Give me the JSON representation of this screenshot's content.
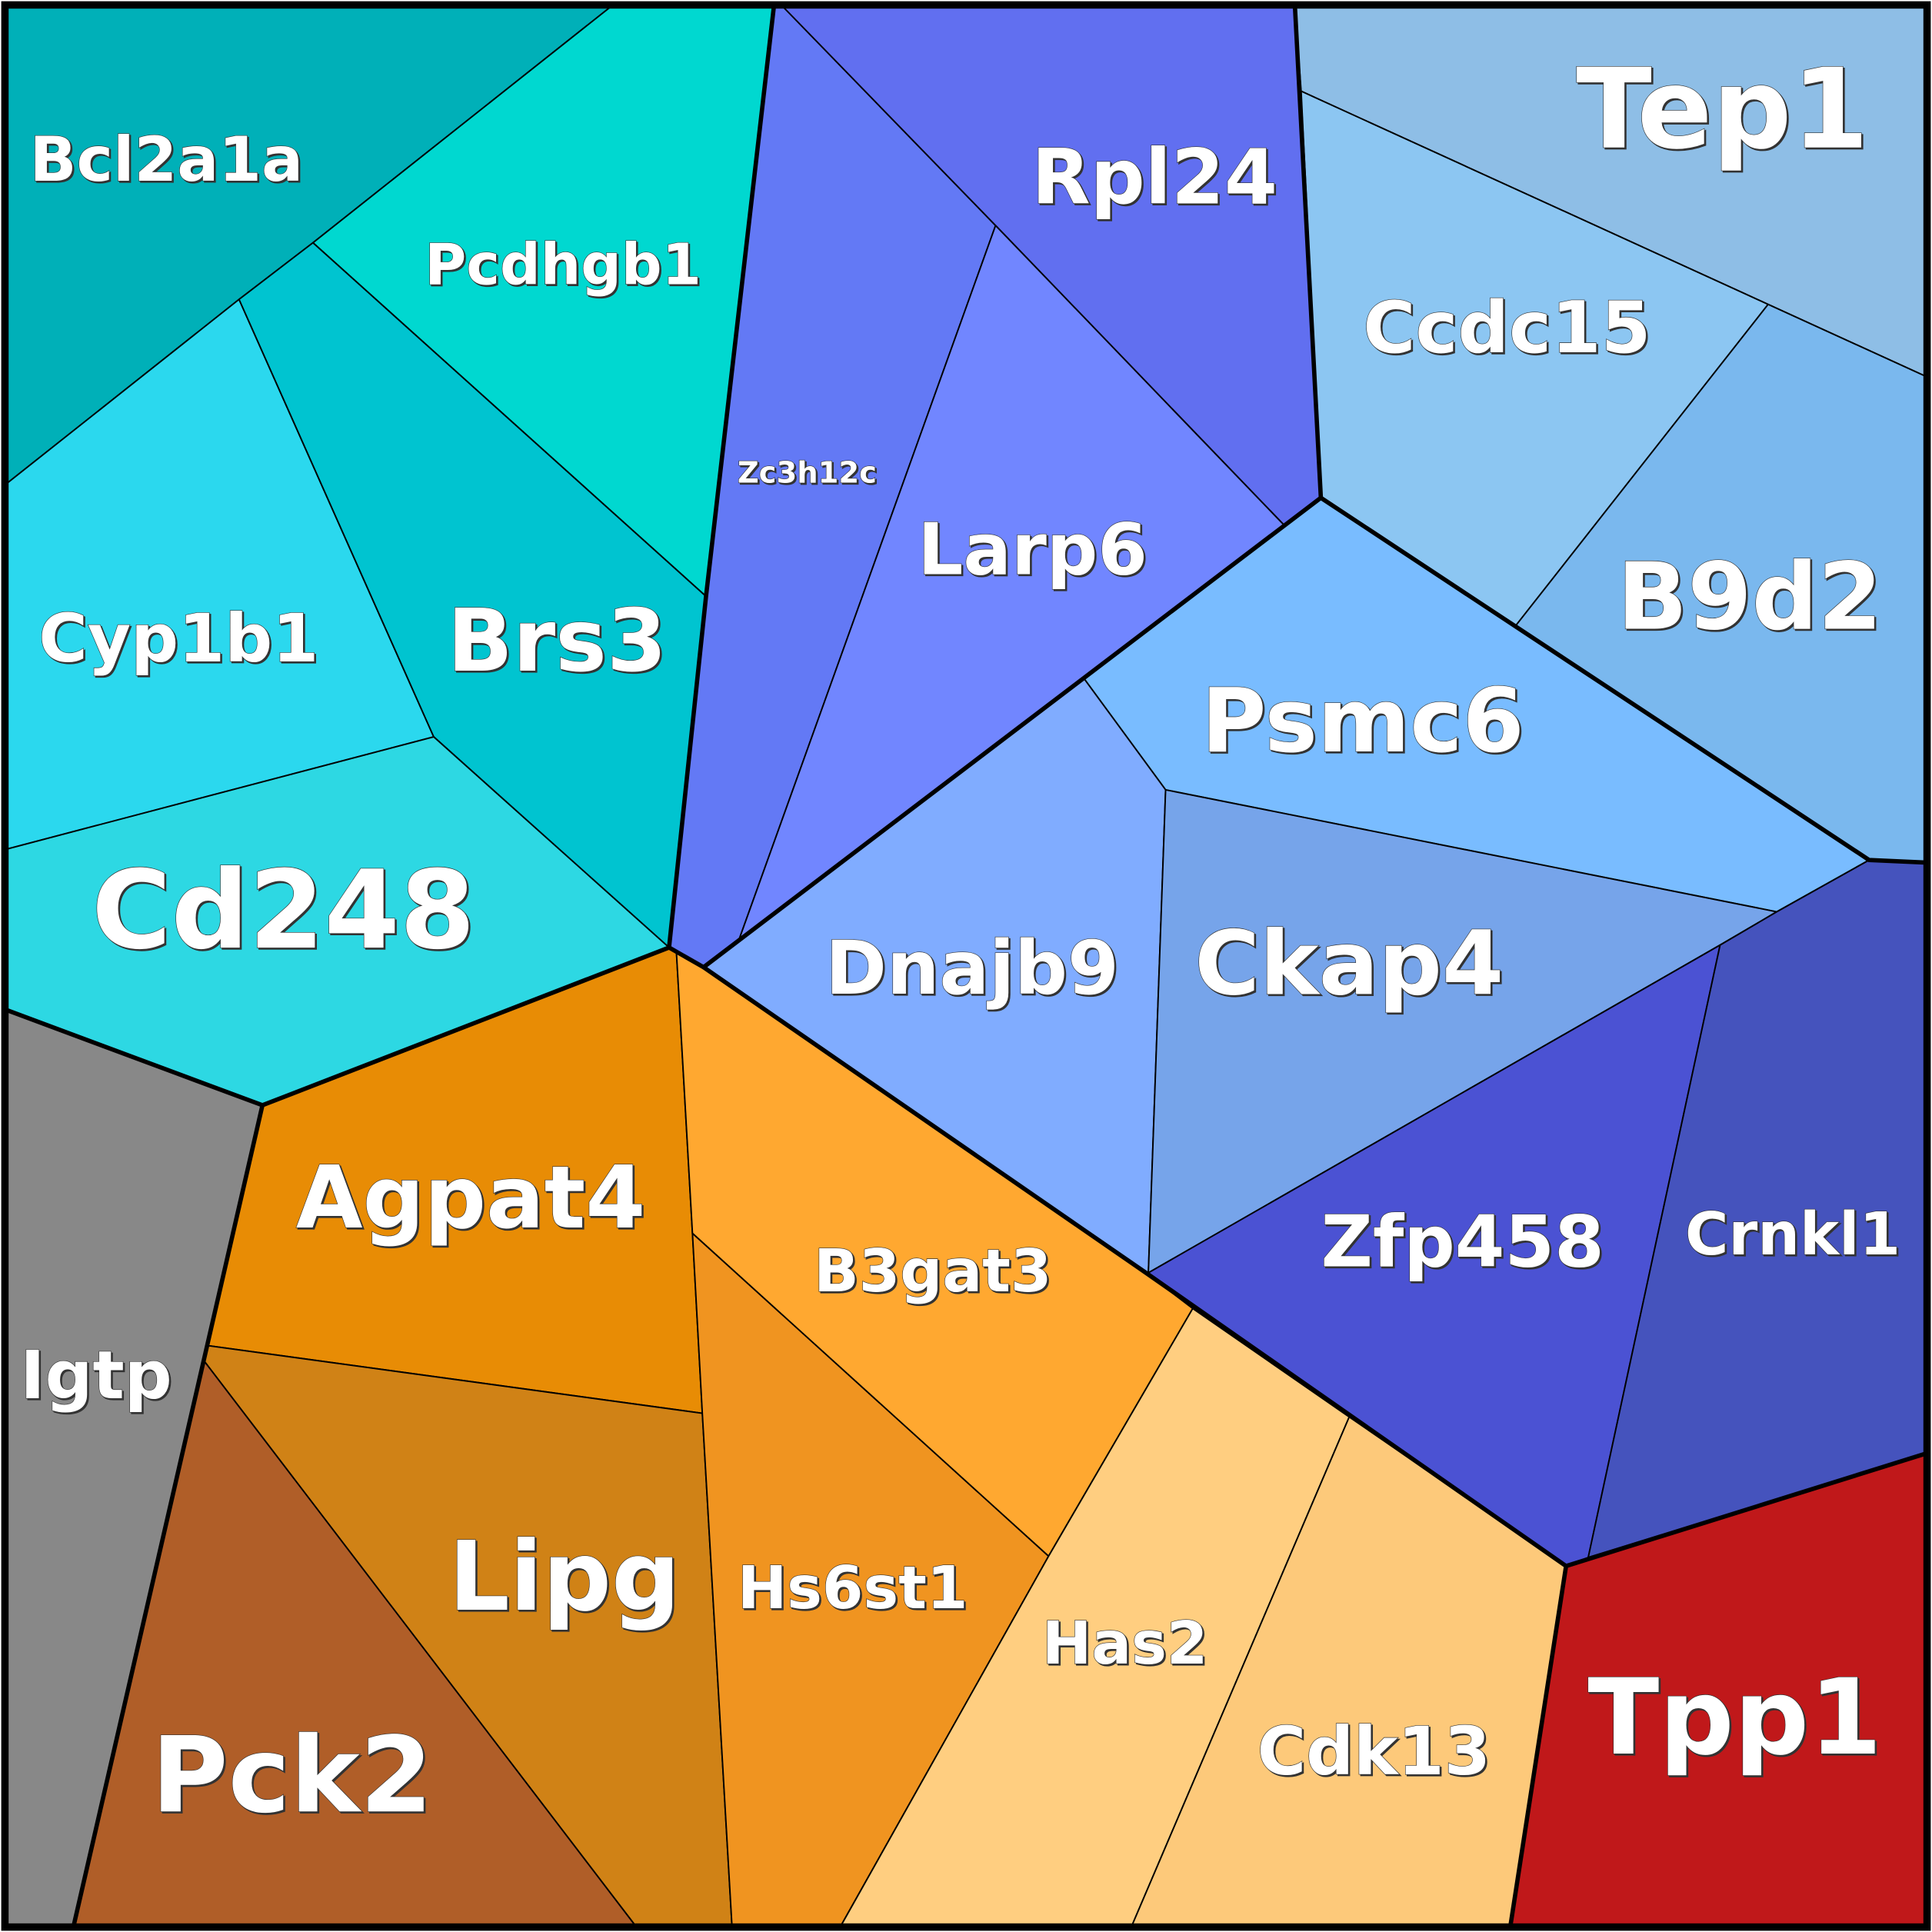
{
  "cells": [
    {
      "label": "Bcl2a1a"
    },
    {
      "label": "Pcdhgb1"
    },
    {
      "label": "Cyp1b1"
    },
    {
      "label": "Brs3"
    },
    {
      "label": "Cd248"
    },
    {
      "label": "Igtp"
    },
    {
      "label": "Agpat4"
    },
    {
      "label": "Lipg"
    },
    {
      "label": "Pck2"
    },
    {
      "label": "B3gat3"
    },
    {
      "label": "Hs6st1"
    },
    {
      "label": "Has2"
    },
    {
      "label": "Cdk13"
    },
    {
      "label": "Tpp1"
    },
    {
      "label": "Zc3h12c"
    },
    {
      "label": "Rpl24"
    },
    {
      "label": "Larp6"
    },
    {
      "label": "Tep1"
    },
    {
      "label": "Ccdc15"
    },
    {
      "label": "B9d2"
    },
    {
      "label": "Psmc6"
    },
    {
      "label": "Dnajb9"
    },
    {
      "label": "Ckap4"
    },
    {
      "label": "Zfp458"
    },
    {
      "label": "Crnkl1"
    }
  ]
}
